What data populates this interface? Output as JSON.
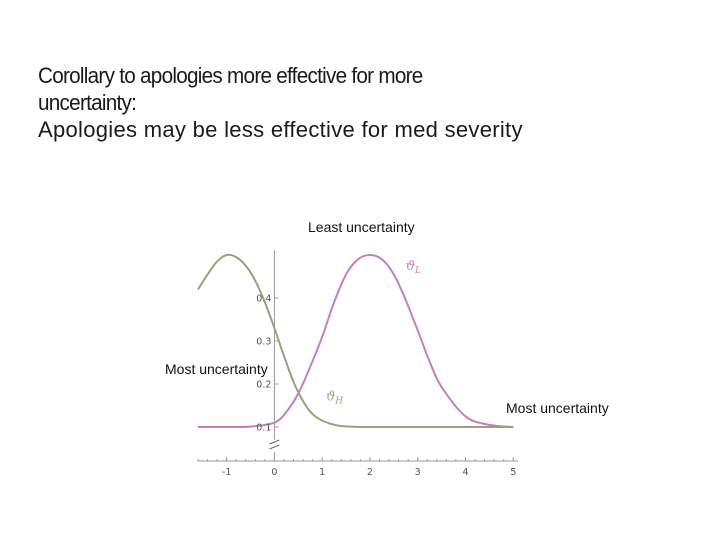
{
  "slide": {
    "title_line1": "Corollary to apologies more effective for more",
    "title_line2": "uncertainty:",
    "subtitle": "Apologies may be less effective for med severity"
  },
  "annotations": {
    "top": "Least uncertainty",
    "left": "Most uncertainty",
    "right": "Most uncertainty"
  },
  "chart_data": {
    "type": "line",
    "x_ticks": [
      "-1",
      "0",
      "1",
      "2",
      "3",
      "4",
      "5"
    ],
    "y_ticks": [
      "0.1",
      "0.2",
      "0.3",
      "0.4"
    ],
    "xlim": [
      -1.6,
      5.1
    ],
    "ylim": [
      0.1,
      0.5
    ],
    "axis_break": true,
    "colors": {
      "theta_L": "#c77fb8",
      "theta_H": "#9aa07a",
      "axis": "#999999"
    },
    "series": [
      {
        "name": "ϑL",
        "name_main": "ϑ",
        "name_sub": "L",
        "color_key": "theta_L",
        "x": [
          -1.6,
          -1.0,
          -0.5,
          0.0,
          0.25,
          0.5,
          0.75,
          1.0,
          1.25,
          1.5,
          1.75,
          2.0,
          2.25,
          2.5,
          2.75,
          3.0,
          3.25,
          3.5,
          4.0,
          4.5,
          5.0
        ],
        "y": [
          0.1,
          0.1,
          0.101,
          0.11,
          0.135,
          0.178,
          0.24,
          0.31,
          0.39,
          0.455,
          0.49,
          0.5,
          0.49,
          0.455,
          0.395,
          0.325,
          0.252,
          0.193,
          0.125,
          0.105,
          0.1
        ]
      },
      {
        "name": "ϑH",
        "name_main": "ϑ",
        "name_sub": "H",
        "color_key": "theta_H",
        "x": [
          -1.6,
          -1.4,
          -1.2,
          -1.0,
          -0.8,
          -0.6,
          -0.4,
          -0.2,
          0.0,
          0.2,
          0.4,
          0.6,
          0.8,
          1.0,
          1.3,
          1.6,
          2.0,
          2.5,
          3.0,
          4.0,
          5.0
        ],
        "y": [
          0.42,
          0.455,
          0.485,
          0.5,
          0.495,
          0.475,
          0.44,
          0.39,
          0.33,
          0.265,
          0.205,
          0.16,
          0.13,
          0.115,
          0.104,
          0.101,
          0.1,
          0.1,
          0.1,
          0.1,
          0.1
        ]
      }
    ]
  }
}
